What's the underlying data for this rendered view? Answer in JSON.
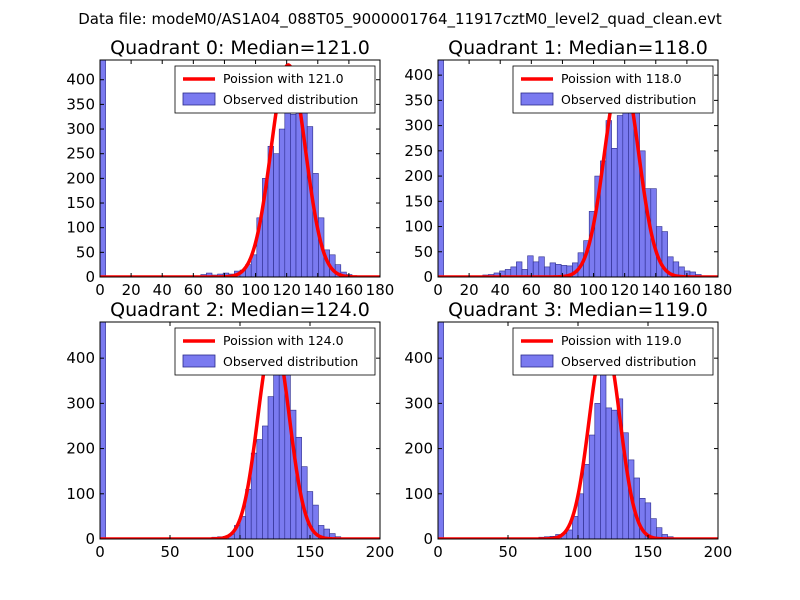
{
  "suptitle": "Data file: modeM0/AS1A04_088T05_9000001764_11917cztM0_level2_quad_clean.evt",
  "colors": {
    "bars": "#7a7af0",
    "bar_edge": "#2a2a8a",
    "poisson": "#ff0000",
    "axes": "#000000"
  },
  "chart_data": [
    {
      "type": "bar",
      "title": "Quadrant 0: Median=121.0",
      "median": 121.0,
      "xlim": [
        0,
        180
      ],
      "ylim": [
        0,
        440
      ],
      "xticks": [
        0,
        20,
        40,
        60,
        80,
        100,
        120,
        140,
        160,
        180
      ],
      "xtick_labels": [
        "0",
        "20",
        "40",
        "60",
        "80",
        "100",
        "120",
        "140",
        "160",
        "180"
      ],
      "yticks": [
        0,
        50,
        100,
        150,
        200,
        250,
        300,
        350,
        400
      ],
      "ytick_labels": [
        "0",
        "50",
        "100",
        "150",
        "200",
        "250",
        "300",
        "350",
        "400"
      ],
      "bin_width": 3.6,
      "bins": [
        [
          0,
          440
        ],
        [
          64.8,
          5
        ],
        [
          68.4,
          8
        ],
        [
          72,
          4
        ],
        [
          75.6,
          6
        ],
        [
          79.2,
          8
        ],
        [
          82.8,
          6
        ],
        [
          86.4,
          12
        ],
        [
          90,
          14
        ],
        [
          93.6,
          25
        ],
        [
          97.2,
          45
        ],
        [
          100.8,
          120
        ],
        [
          104.4,
          200
        ],
        [
          108,
          265
        ],
        [
          111.6,
          250
        ],
        [
          115.2,
          300
        ],
        [
          118.8,
          375
        ],
        [
          122.4,
          330
        ],
        [
          126,
          335
        ],
        [
          129.6,
          350
        ],
        [
          133.2,
          305
        ],
        [
          136.8,
          210
        ],
        [
          140.4,
          120
        ],
        [
          144,
          55
        ],
        [
          147.6,
          45
        ],
        [
          151.2,
          25
        ],
        [
          154.8,
          10
        ],
        [
          158.4,
          5
        ],
        [
          162,
          2
        ],
        [
          165.6,
          2
        ]
      ],
      "poisson_label": "Poission with 121.0",
      "observed_label": "Observed distribution",
      "poisson": {
        "mean": 121.0,
        "peak": 430
      }
    },
    {
      "type": "bar",
      "title": "Quadrant 1: Median=118.0",
      "median": 118.0,
      "xlim": [
        0,
        180
      ],
      "ylim": [
        0,
        430
      ],
      "xticks": [
        0,
        20,
        40,
        60,
        80,
        100,
        120,
        140,
        160,
        180
      ],
      "xtick_labels": [
        "0",
        "20",
        "40",
        "60",
        "80",
        "100",
        "120",
        "140",
        "160",
        "180"
      ],
      "yticks": [
        0,
        50,
        100,
        150,
        200,
        250,
        300,
        350,
        400
      ],
      "ytick_labels": [
        "0",
        "50",
        "100",
        "150",
        "200",
        "250",
        "300",
        "350",
        "400"
      ],
      "bin_width": 3.6,
      "bins": [
        [
          0,
          430
        ],
        [
          25.2,
          2
        ],
        [
          28.8,
          4
        ],
        [
          32.4,
          5
        ],
        [
          36,
          8
        ],
        [
          39.6,
          12
        ],
        [
          43.2,
          15
        ],
        [
          46.8,
          20
        ],
        [
          50.4,
          30
        ],
        [
          54,
          15
        ],
        [
          57.6,
          42
        ],
        [
          61.2,
          30
        ],
        [
          64.8,
          40
        ],
        [
          68.4,
          20
        ],
        [
          72,
          28
        ],
        [
          75.6,
          25
        ],
        [
          79.2,
          23
        ],
        [
          82.8,
          22
        ],
        [
          86.4,
          28
        ],
        [
          90,
          48
        ],
        [
          93.6,
          72
        ],
        [
          97.2,
          130
        ],
        [
          100.8,
          200
        ],
        [
          104.4,
          230
        ],
        [
          108,
          310
        ],
        [
          111.6,
          255
        ],
        [
          115.2,
          320
        ],
        [
          118.8,
          390
        ],
        [
          122.4,
          340
        ],
        [
          126,
          340
        ],
        [
          129.6,
          250
        ],
        [
          133.2,
          175
        ],
        [
          136.8,
          175
        ],
        [
          140.4,
          100
        ],
        [
          144,
          90
        ],
        [
          147.6,
          40
        ],
        [
          151.2,
          30
        ],
        [
          154.8,
          20
        ],
        [
          158.4,
          12
        ],
        [
          162,
          10
        ],
        [
          165.6,
          5
        ],
        [
          169.2,
          2
        ]
      ],
      "poisson_label": "Poission with 118.0",
      "observed_label": "Observed distribution",
      "poisson": {
        "mean": 118.0,
        "peak": 410
      }
    },
    {
      "type": "bar",
      "title": "Quadrant 2: Median=124.0",
      "median": 124.0,
      "xlim": [
        0,
        200
      ],
      "ylim": [
        0,
        480
      ],
      "xticks": [
        0,
        50,
        100,
        150,
        200
      ],
      "xtick_labels": [
        "0",
        "50",
        "100",
        "150",
        "200"
      ],
      "yticks": [
        0,
        100,
        200,
        300,
        400
      ],
      "ytick_labels": [
        "0",
        "100",
        "200",
        "300",
        "400"
      ],
      "bin_width": 4,
      "bins": [
        [
          0,
          480
        ],
        [
          72,
          2
        ],
        [
          80,
          4
        ],
        [
          84,
          5
        ],
        [
          88,
          6
        ],
        [
          92,
          10
        ],
        [
          96,
          30
        ],
        [
          100,
          50
        ],
        [
          104,
          110
        ],
        [
          108,
          190
        ],
        [
          112,
          220
        ],
        [
          116,
          250
        ],
        [
          120,
          315
        ],
        [
          124,
          455
        ],
        [
          128,
          385
        ],
        [
          132,
          370
        ],
        [
          136,
          285
        ],
        [
          140,
          225
        ],
        [
          144,
          160
        ],
        [
          148,
          105
        ],
        [
          152,
          75
        ],
        [
          156,
          30
        ],
        [
          160,
          22
        ],
        [
          164,
          12
        ],
        [
          168,
          5
        ],
        [
          172,
          2
        ],
        [
          176,
          2
        ]
      ],
      "poisson_label": "Poission with 124.0",
      "observed_label": "Observed distribution",
      "poisson": {
        "mean": 124.0,
        "peak": 450
      }
    },
    {
      "type": "bar",
      "title": "Quadrant 3: Median=119.0",
      "median": 119.0,
      "xlim": [
        0,
        200
      ],
      "ylim": [
        0,
        480
      ],
      "xticks": [
        0,
        50,
        100,
        150,
        200
      ],
      "xtick_labels": [
        "0",
        "50",
        "100",
        "150",
        "200"
      ],
      "yticks": [
        0,
        100,
        200,
        300,
        400
      ],
      "ytick_labels": [
        "0",
        "100",
        "200",
        "300",
        "400"
      ],
      "bin_width": 4,
      "bins": [
        [
          0,
          480
        ],
        [
          64,
          2
        ],
        [
          72,
          4
        ],
        [
          76,
          5
        ],
        [
          80,
          6
        ],
        [
          84,
          10
        ],
        [
          88,
          12
        ],
        [
          92,
          20
        ],
        [
          96,
          50
        ],
        [
          100,
          100
        ],
        [
          104,
          165
        ],
        [
          108,
          230
        ],
        [
          112,
          300
        ],
        [
          116,
          415
        ],
        [
          120,
          290
        ],
        [
          124,
          285
        ],
        [
          128,
          310
        ],
        [
          132,
          235
        ],
        [
          136,
          175
        ],
        [
          140,
          135
        ],
        [
          144,
          90
        ],
        [
          148,
          80
        ],
        [
          152,
          45
        ],
        [
          156,
          25
        ],
        [
          160,
          10
        ],
        [
          164,
          5
        ],
        [
          168,
          2
        ]
      ],
      "poisson_label": "Poission with 119.0",
      "observed_label": "Observed distribution",
      "poisson": {
        "mean": 119.0,
        "peak": 440
      }
    }
  ]
}
